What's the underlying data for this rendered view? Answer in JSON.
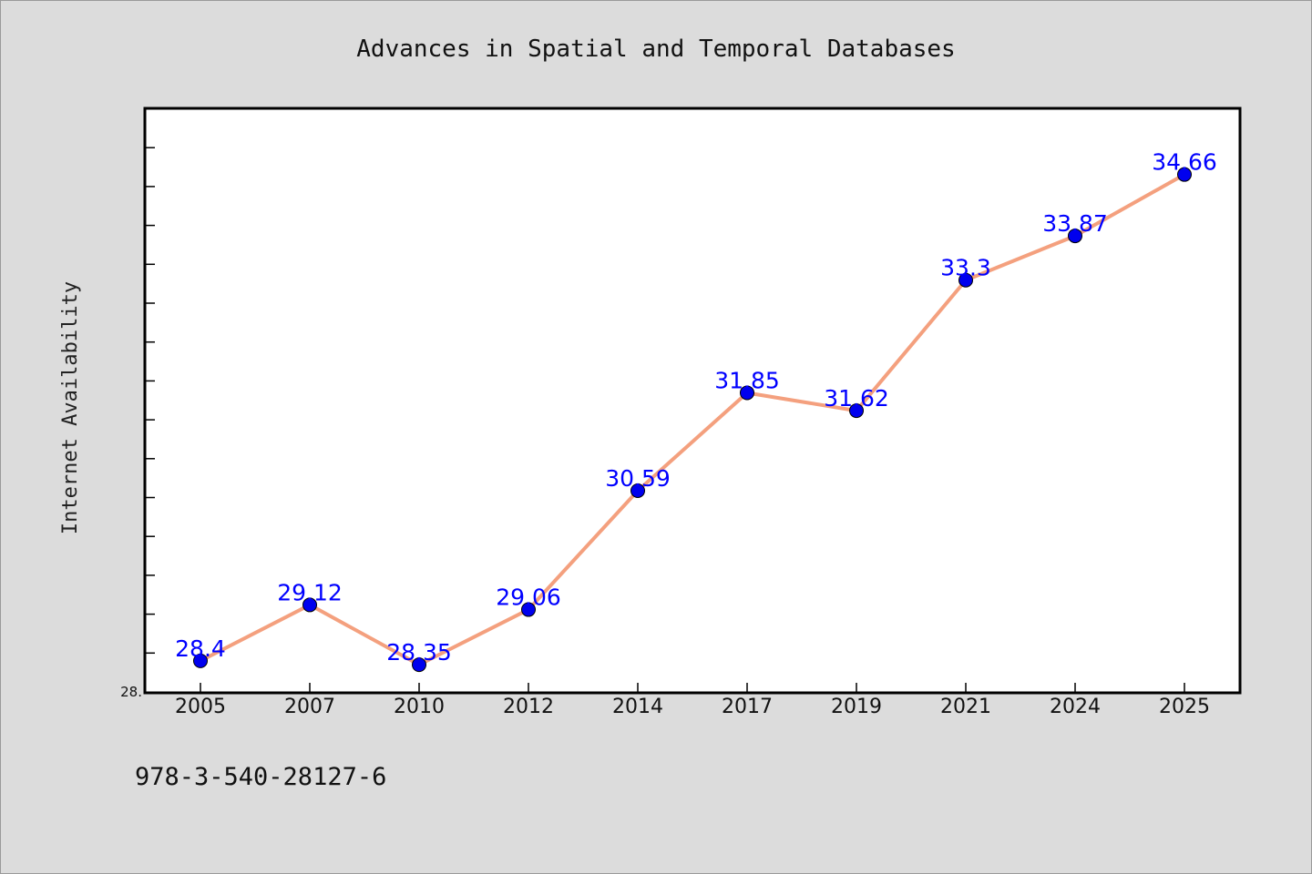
{
  "chart_data": {
    "type": "line",
    "title": "Advances in Spatial and Temporal Databases",
    "xlabel": "",
    "ylabel": "Internet Availability",
    "categories": [
      "2005",
      "2007",
      "2010",
      "2012",
      "2014",
      "2017",
      "2019",
      "2021",
      "2024",
      "2025"
    ],
    "series": [
      {
        "values": [
          28.4,
          29.12,
          28.35,
          29.06,
          30.59,
          31.85,
          31.62,
          33.3,
          33.87,
          34.66
        ],
        "data_labels": [
          "28.4",
          "29.12",
          "28.35",
          "29.06",
          "30.59",
          "31.85",
          "31.62",
          "33.3",
          "33.87",
          "34.66"
        ],
        "line_color": "#f4a07e",
        "marker_color": "#0000ee"
      }
    ],
    "ylim": [
      28.0,
      35.5
    ],
    "y_tick_labels": [
      {
        "value": 28.0,
        "label": "28."
      }
    ],
    "grid": false,
    "legend": "none",
    "label_color": "#0000ff"
  },
  "footer": {
    "isbn": "978-3-540-28127-6"
  }
}
